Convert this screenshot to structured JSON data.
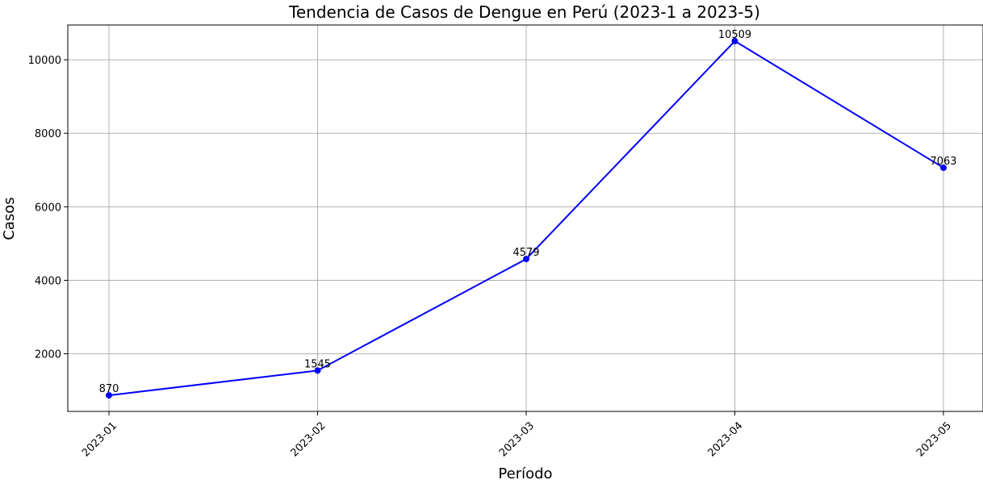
{
  "chart_data": {
    "type": "line",
    "title": "Tendencia de Casos de Dengue en Perú  (2023-1 a 2023-5)",
    "xlabel": "Período",
    "ylabel": "Casos",
    "categories": [
      "2023-01",
      "2023-02",
      "2023-03",
      "2023-04",
      "2023-05"
    ],
    "series": [
      {
        "values": [
          870,
          1545,
          4579,
          10509,
          7063
        ]
      }
    ],
    "data_labels": [
      "870",
      "1545",
      "4579",
      "10509",
      "7063"
    ],
    "yticks": [
      2000,
      4000,
      6000,
      8000,
      10000
    ],
    "ylim": [
      433,
      10946
    ],
    "grid": true,
    "line_color": "#0000ff",
    "marker_color": "#0000ff"
  }
}
